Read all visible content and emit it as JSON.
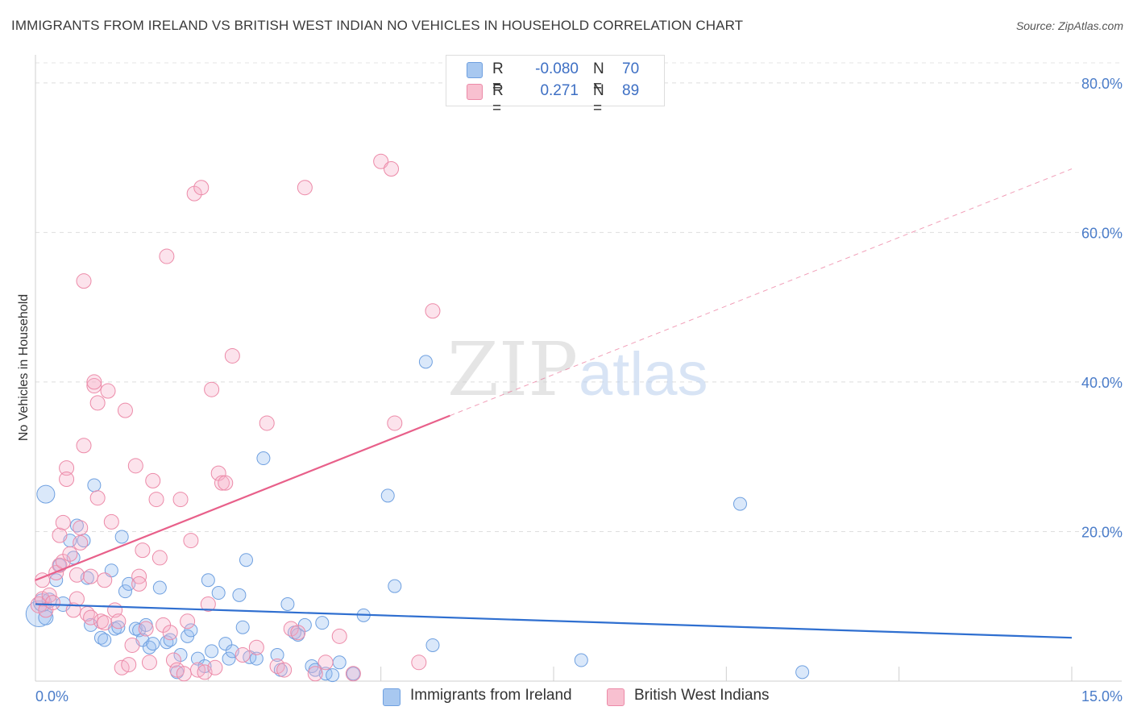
{
  "title": "IMMIGRANTS FROM IRELAND VS BRITISH WEST INDIAN NO VEHICLES IN HOUSEHOLD CORRELATION CHART",
  "source": "Source: ZipAtlas.com",
  "watermark": {
    "zip": "ZIP",
    "atlas": "atlas"
  },
  "legend": {
    "rows": [
      {
        "r_label": "R =",
        "r_value": "-0.080",
        "n_label": "N =",
        "n_value": "70",
        "color": "#a8c8f0",
        "border": "#6fa0e0"
      },
      {
        "r_label": "R =",
        "r_value": "0.271",
        "n_label": "N =",
        "n_value": "89",
        "color": "#f8c0d0",
        "border": "#ec8aa8"
      }
    ]
  },
  "bottom_legend": {
    "items": [
      {
        "label": "Immigrants from Ireland",
        "color": "#a8c8f0",
        "border": "#6fa0e0"
      },
      {
        "label": "British West Indians",
        "color": "#f8c0d0",
        "border": "#ec8aa8"
      }
    ]
  },
  "chart_data": {
    "type": "scatter",
    "title": "IMMIGRANTS FROM IRELAND VS BRITISH WEST INDIAN NO VEHICLES IN HOUSEHOLD CORRELATION CHART",
    "xlabel": "",
    "ylabel": "No Vehicles in Household",
    "xlim": [
      0,
      15
    ],
    "ylim": [
      0,
      83
    ],
    "x_tick_labels": [
      "0.0%",
      "15.0%"
    ],
    "y_tick_labels": [
      "20.0%",
      "40.0%",
      "60.0%",
      "80.0%"
    ],
    "y_ticks": [
      20,
      40,
      60,
      80
    ],
    "grid": true,
    "legend_position": "top-center",
    "series": [
      {
        "name": "Immigrants from Ireland",
        "color": "#6fa0e0",
        "fill": "rgba(150,190,240,0.35)",
        "trend": {
          "x": [
            0,
            15
          ],
          "y": [
            10.3,
            5.8
          ],
          "color": "#2f6fd0",
          "dashed_from": null
        },
        "points": [
          [
            0.05,
            9.0,
            16
          ],
          [
            0.1,
            10.5,
            11
          ],
          [
            0.15,
            8.5,
            9
          ],
          [
            0.2,
            10.8,
            9
          ],
          [
            0.15,
            25.0,
            11
          ],
          [
            0.3,
            13.5,
            8
          ],
          [
            0.35,
            15.5,
            8
          ],
          [
            0.4,
            10.3,
            9
          ],
          [
            0.5,
            18.8,
            8
          ],
          [
            0.55,
            16.5,
            8
          ],
          [
            0.6,
            20.8,
            8
          ],
          [
            0.7,
            18.8,
            8
          ],
          [
            0.75,
            13.8,
            8
          ],
          [
            0.85,
            26.2,
            8
          ],
          [
            0.8,
            7.5,
            8
          ],
          [
            0.95,
            5.8,
            8
          ],
          [
            1.0,
            5.5,
            8
          ],
          [
            1.1,
            14.8,
            8
          ],
          [
            1.15,
            7.0,
            8
          ],
          [
            1.2,
            7.2,
            8
          ],
          [
            1.25,
            19.3,
            8
          ],
          [
            1.3,
            12.0,
            8
          ],
          [
            1.35,
            13.0,
            8
          ],
          [
            1.45,
            7.0,
            8
          ],
          [
            1.5,
            6.8,
            8
          ],
          [
            1.55,
            5.5,
            8
          ],
          [
            1.6,
            7.5,
            8
          ],
          [
            1.65,
            4.5,
            8
          ],
          [
            1.8,
            12.5,
            8
          ],
          [
            1.7,
            5.0,
            8
          ],
          [
            1.9,
            5.2,
            8
          ],
          [
            1.95,
            5.5,
            8
          ],
          [
            2.05,
            1.2,
            8
          ],
          [
            2.1,
            3.5,
            8
          ],
          [
            2.2,
            6.0,
            8
          ],
          [
            2.25,
            6.8,
            8
          ],
          [
            2.35,
            3.0,
            8
          ],
          [
            2.45,
            2.0,
            8
          ],
          [
            2.5,
            13.5,
            8
          ],
          [
            2.55,
            4.0,
            8
          ],
          [
            2.65,
            11.8,
            8
          ],
          [
            2.75,
            5.0,
            8
          ],
          [
            2.8,
            3.0,
            8
          ],
          [
            2.85,
            4.0,
            8
          ],
          [
            2.95,
            11.5,
            8
          ],
          [
            3.0,
            7.2,
            8
          ],
          [
            3.05,
            16.2,
            8
          ],
          [
            3.1,
            3.2,
            8
          ],
          [
            3.2,
            3.0,
            8
          ],
          [
            3.3,
            29.8,
            8
          ],
          [
            3.5,
            3.5,
            8
          ],
          [
            3.55,
            1.5,
            8
          ],
          [
            3.65,
            10.3,
            8
          ],
          [
            3.75,
            6.5,
            8
          ],
          [
            3.8,
            6.2,
            8
          ],
          [
            3.9,
            7.5,
            8
          ],
          [
            4.0,
            2.0,
            8
          ],
          [
            4.05,
            1.5,
            8
          ],
          [
            4.15,
            7.8,
            8
          ],
          [
            4.2,
            1.0,
            8
          ],
          [
            4.3,
            0.8,
            8
          ],
          [
            4.4,
            2.5,
            8
          ],
          [
            4.6,
            1.0,
            8
          ],
          [
            4.75,
            8.8,
            8
          ],
          [
            5.1,
            24.8,
            8
          ],
          [
            5.2,
            12.7,
            8
          ],
          [
            5.65,
            42.7,
            8
          ],
          [
            5.75,
            4.8,
            8
          ],
          [
            7.9,
            2.8,
            8
          ],
          [
            10.2,
            23.7,
            8
          ],
          [
            11.1,
            1.2,
            8
          ]
        ]
      },
      {
        "name": "British West Indians",
        "color": "#ec8aa8",
        "fill": "rgba(245,175,200,0.35)",
        "trend": {
          "x": [
            0,
            6.0,
            15
          ],
          "y": [
            13.5,
            35.5,
            68.5
          ],
          "color": "#e8608a",
          "dashed_from": 6.0
        },
        "points": [
          [
            0.05,
            10.2,
            10
          ],
          [
            0.1,
            11.0,
            9
          ],
          [
            0.1,
            13.5,
            9
          ],
          [
            0.15,
            9.5,
            9
          ],
          [
            0.2,
            11.5,
            9
          ],
          [
            0.25,
            10.5,
            9
          ],
          [
            0.3,
            14.5,
            9
          ],
          [
            0.35,
            15.5,
            9
          ],
          [
            0.4,
            16.0,
            9
          ],
          [
            0.35,
            19.5,
            9
          ],
          [
            0.4,
            21.2,
            9
          ],
          [
            0.45,
            28.5,
            9
          ],
          [
            0.45,
            27.0,
            9
          ],
          [
            0.5,
            17.0,
            9
          ],
          [
            0.55,
            9.5,
            9
          ],
          [
            0.6,
            11.0,
            9
          ],
          [
            0.6,
            14.2,
            9
          ],
          [
            0.65,
            18.5,
            9
          ],
          [
            0.65,
            20.5,
            9
          ],
          [
            0.7,
            31.5,
            9
          ],
          [
            0.7,
            53.5,
            9
          ],
          [
            0.75,
            9.0,
            9
          ],
          [
            0.8,
            8.5,
            9
          ],
          [
            0.8,
            14.0,
            9
          ],
          [
            0.85,
            39.5,
            9
          ],
          [
            0.85,
            40.0,
            9
          ],
          [
            0.9,
            37.2,
            9
          ],
          [
            0.9,
            24.5,
            9
          ],
          [
            0.95,
            8.0,
            9
          ],
          [
            1.0,
            7.8,
            9
          ],
          [
            1.0,
            13.5,
            9
          ],
          [
            1.05,
            38.8,
            9
          ],
          [
            1.1,
            21.3,
            9
          ],
          [
            1.15,
            9.5,
            9
          ],
          [
            1.2,
            8.0,
            9
          ],
          [
            1.25,
            1.8,
            9
          ],
          [
            1.3,
            36.2,
            9
          ],
          [
            1.35,
            2.2,
            9
          ],
          [
            1.4,
            4.8,
            9
          ],
          [
            1.45,
            28.8,
            9
          ],
          [
            1.5,
            14.0,
            9
          ],
          [
            1.5,
            13.0,
            9
          ],
          [
            1.55,
            17.5,
            9
          ],
          [
            1.6,
            7.0,
            9
          ],
          [
            1.65,
            2.5,
            9
          ],
          [
            1.7,
            26.8,
            9
          ],
          [
            1.75,
            24.3,
            9
          ],
          [
            1.8,
            16.5,
            9
          ],
          [
            1.85,
            7.5,
            9
          ],
          [
            1.9,
            56.8,
            9
          ],
          [
            1.95,
            6.5,
            9
          ],
          [
            2.0,
            2.8,
            9
          ],
          [
            2.05,
            1.5,
            9
          ],
          [
            2.1,
            24.3,
            9
          ],
          [
            2.15,
            1.0,
            9
          ],
          [
            2.2,
            8.0,
            9
          ],
          [
            2.25,
            18.8,
            9
          ],
          [
            2.3,
            65.2,
            9
          ],
          [
            2.35,
            1.5,
            9
          ],
          [
            2.4,
            66.0,
            9
          ],
          [
            2.45,
            1.2,
            9
          ],
          [
            2.5,
            10.3,
            9
          ],
          [
            2.55,
            39.0,
            9
          ],
          [
            2.6,
            1.8,
            9
          ],
          [
            2.65,
            27.8,
            9
          ],
          [
            2.7,
            26.5,
            9
          ],
          [
            2.75,
            26.5,
            9
          ],
          [
            2.85,
            43.5,
            9
          ],
          [
            3.0,
            3.5,
            9
          ],
          [
            3.2,
            4.5,
            9
          ],
          [
            3.35,
            34.5,
            9
          ],
          [
            3.5,
            2.0,
            9
          ],
          [
            3.6,
            1.5,
            9
          ],
          [
            3.7,
            7.0,
            9
          ],
          [
            3.8,
            6.5,
            9
          ],
          [
            3.9,
            66.0,
            9
          ],
          [
            4.05,
            1.0,
            9
          ],
          [
            4.2,
            2.5,
            9
          ],
          [
            4.4,
            6.0,
            9
          ],
          [
            4.6,
            1.0,
            9
          ],
          [
            5.0,
            69.5,
            9
          ],
          [
            5.15,
            68.5,
            9
          ],
          [
            5.2,
            34.5,
            9
          ],
          [
            5.55,
            2.5,
            9
          ],
          [
            5.75,
            49.5,
            9
          ]
        ]
      }
    ]
  }
}
